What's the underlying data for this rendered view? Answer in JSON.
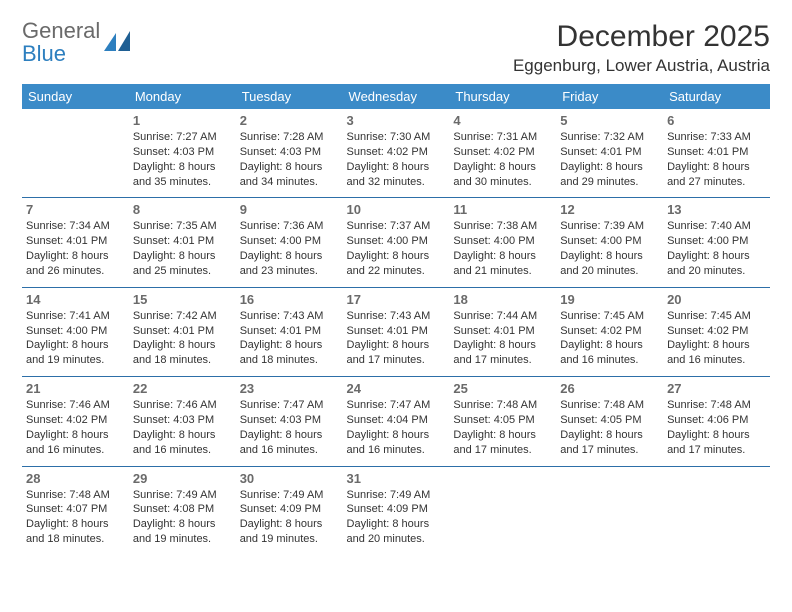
{
  "logo": {
    "general": "General",
    "blue": "Blue"
  },
  "title": "December 2025",
  "location": "Eggenburg, Lower Austria, Austria",
  "colors": {
    "header_bg": "#3b8bc8",
    "header_text": "#ffffff",
    "row_divider": "#2d6fa8",
    "daynum": "#6a6a6a",
    "body_text": "#333333",
    "logo_gray": "#6a6a6a",
    "logo_blue": "#2d7fbf",
    "background": "#ffffff"
  },
  "fonts": {
    "title_size_pt": 22,
    "location_size_pt": 13,
    "dayhead_size_pt": 10,
    "daynum_size_pt": 10,
    "cell_size_pt": 8
  },
  "dayNames": [
    "Sunday",
    "Monday",
    "Tuesday",
    "Wednesday",
    "Thursday",
    "Friday",
    "Saturday"
  ],
  "weeks": [
    [
      null,
      {
        "n": "1",
        "sr": "7:27 AM",
        "ss": "4:03 PM",
        "dl": "8 hours and 35 minutes."
      },
      {
        "n": "2",
        "sr": "7:28 AM",
        "ss": "4:03 PM",
        "dl": "8 hours and 34 minutes."
      },
      {
        "n": "3",
        "sr": "7:30 AM",
        "ss": "4:02 PM",
        "dl": "8 hours and 32 minutes."
      },
      {
        "n": "4",
        "sr": "7:31 AM",
        "ss": "4:02 PM",
        "dl": "8 hours and 30 minutes."
      },
      {
        "n": "5",
        "sr": "7:32 AM",
        "ss": "4:01 PM",
        "dl": "8 hours and 29 minutes."
      },
      {
        "n": "6",
        "sr": "7:33 AM",
        "ss": "4:01 PM",
        "dl": "8 hours and 27 minutes."
      }
    ],
    [
      {
        "n": "7",
        "sr": "7:34 AM",
        "ss": "4:01 PM",
        "dl": "8 hours and 26 minutes."
      },
      {
        "n": "8",
        "sr": "7:35 AM",
        "ss": "4:01 PM",
        "dl": "8 hours and 25 minutes."
      },
      {
        "n": "9",
        "sr": "7:36 AM",
        "ss": "4:00 PM",
        "dl": "8 hours and 23 minutes."
      },
      {
        "n": "10",
        "sr": "7:37 AM",
        "ss": "4:00 PM",
        "dl": "8 hours and 22 minutes."
      },
      {
        "n": "11",
        "sr": "7:38 AM",
        "ss": "4:00 PM",
        "dl": "8 hours and 21 minutes."
      },
      {
        "n": "12",
        "sr": "7:39 AM",
        "ss": "4:00 PM",
        "dl": "8 hours and 20 minutes."
      },
      {
        "n": "13",
        "sr": "7:40 AM",
        "ss": "4:00 PM",
        "dl": "8 hours and 20 minutes."
      }
    ],
    [
      {
        "n": "14",
        "sr": "7:41 AM",
        "ss": "4:00 PM",
        "dl": "8 hours and 19 minutes."
      },
      {
        "n": "15",
        "sr": "7:42 AM",
        "ss": "4:01 PM",
        "dl": "8 hours and 18 minutes."
      },
      {
        "n": "16",
        "sr": "7:43 AM",
        "ss": "4:01 PM",
        "dl": "8 hours and 18 minutes."
      },
      {
        "n": "17",
        "sr": "7:43 AM",
        "ss": "4:01 PM",
        "dl": "8 hours and 17 minutes."
      },
      {
        "n": "18",
        "sr": "7:44 AM",
        "ss": "4:01 PM",
        "dl": "8 hours and 17 minutes."
      },
      {
        "n": "19",
        "sr": "7:45 AM",
        "ss": "4:02 PM",
        "dl": "8 hours and 16 minutes."
      },
      {
        "n": "20",
        "sr": "7:45 AM",
        "ss": "4:02 PM",
        "dl": "8 hours and 16 minutes."
      }
    ],
    [
      {
        "n": "21",
        "sr": "7:46 AM",
        "ss": "4:02 PM",
        "dl": "8 hours and 16 minutes."
      },
      {
        "n": "22",
        "sr": "7:46 AM",
        "ss": "4:03 PM",
        "dl": "8 hours and 16 minutes."
      },
      {
        "n": "23",
        "sr": "7:47 AM",
        "ss": "4:03 PM",
        "dl": "8 hours and 16 minutes."
      },
      {
        "n": "24",
        "sr": "7:47 AM",
        "ss": "4:04 PM",
        "dl": "8 hours and 16 minutes."
      },
      {
        "n": "25",
        "sr": "7:48 AM",
        "ss": "4:05 PM",
        "dl": "8 hours and 17 minutes."
      },
      {
        "n": "26",
        "sr": "7:48 AM",
        "ss": "4:05 PM",
        "dl": "8 hours and 17 minutes."
      },
      {
        "n": "27",
        "sr": "7:48 AM",
        "ss": "4:06 PM",
        "dl": "8 hours and 17 minutes."
      }
    ],
    [
      {
        "n": "28",
        "sr": "7:48 AM",
        "ss": "4:07 PM",
        "dl": "8 hours and 18 minutes."
      },
      {
        "n": "29",
        "sr": "7:49 AM",
        "ss": "4:08 PM",
        "dl": "8 hours and 19 minutes."
      },
      {
        "n": "30",
        "sr": "7:49 AM",
        "ss": "4:09 PM",
        "dl": "8 hours and 19 minutes."
      },
      {
        "n": "31",
        "sr": "7:49 AM",
        "ss": "4:09 PM",
        "dl": "8 hours and 20 minutes."
      },
      null,
      null,
      null
    ]
  ],
  "labels": {
    "sunrise": "Sunrise:",
    "sunset": "Sunset:",
    "daylight": "Daylight:"
  }
}
